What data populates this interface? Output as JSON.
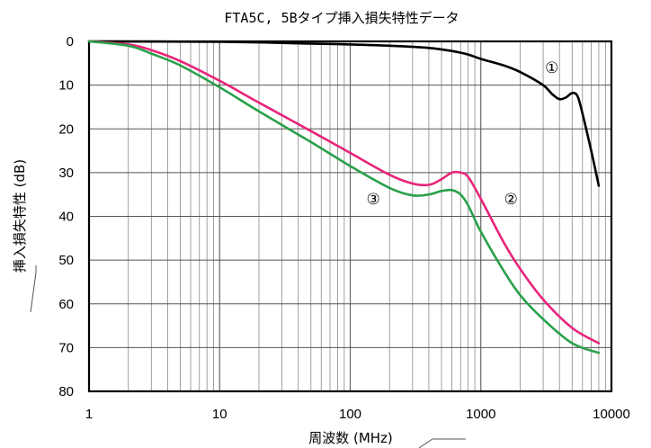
{
  "chart_data": {
    "type": "line",
    "title": "FTA5C, 5Bタイプ挿入損失特性データ",
    "xlabel": "周波数 (MHz)",
    "ylabel": "挿入損失特性 (dB)",
    "xscale": "log",
    "xlim": [
      1,
      10000
    ],
    "ylim": [
      0,
      80
    ],
    "y_inverted": true,
    "grid": true,
    "x_ticks": [
      "1",
      "10",
      "100",
      "1000",
      "10000"
    ],
    "y_ticks": [
      "0",
      "10",
      "20",
      "30",
      "40",
      "50",
      "60",
      "70",
      "80"
    ],
    "series": [
      {
        "name": "①",
        "color": "#000000",
        "x": [
          1,
          10,
          50,
          100,
          200,
          400,
          600,
          800,
          1000,
          1500,
          2000,
          3000,
          3500,
          4000,
          4500,
          5000,
          5500,
          6000,
          7000,
          8000
        ],
        "y": [
          0,
          0.1,
          0.5,
          0.7,
          1.0,
          1.5,
          2.2,
          3.0,
          4.0,
          5.5,
          7.0,
          10.0,
          12.0,
          13.2,
          12.8,
          11.8,
          12.5,
          16.5,
          25.0,
          33.0
        ]
      },
      {
        "name": "②",
        "color": "#e8247a",
        "x": [
          1,
          2,
          3,
          5,
          10,
          20,
          50,
          100,
          200,
          300,
          400,
          500,
          600,
          700,
          800,
          1000,
          1500,
          2000,
          3000,
          5000,
          8000
        ],
        "y": [
          0,
          0.7,
          2.0,
          4.5,
          9.0,
          14.0,
          20.5,
          25.5,
          30.5,
          32.5,
          32.8,
          31.5,
          30.0,
          30.0,
          31.0,
          36.0,
          46.0,
          52.0,
          59.0,
          65.5,
          69.0
        ]
      },
      {
        "name": "③",
        "color": "#2aa04a",
        "x": [
          1,
          2,
          3,
          5,
          10,
          20,
          50,
          100,
          200,
          300,
          400,
          500,
          600,
          700,
          800,
          1000,
          1500,
          2000,
          3000,
          5000,
          8000
        ],
        "y": [
          0,
          1.0,
          2.8,
          5.5,
          10.5,
          16.0,
          23.0,
          28.5,
          33.5,
          35.2,
          35.0,
          34.2,
          34.0,
          35.0,
          37.5,
          43.5,
          52.5,
          58.0,
          63.5,
          69.0,
          71.2
        ]
      }
    ],
    "labels": [
      {
        "text": "①",
        "x": 3500,
        "y": 6
      },
      {
        "text": "②",
        "x": 1700,
        "y": 36
      },
      {
        "text": "③",
        "x": 150,
        "y": 36
      }
    ]
  }
}
